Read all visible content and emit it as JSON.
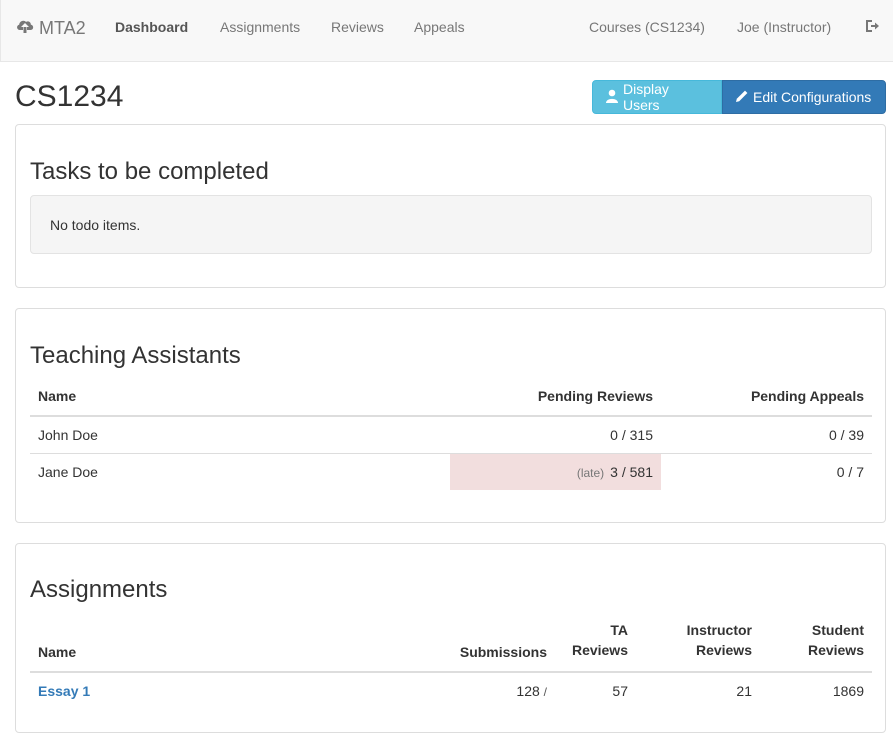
{
  "navbar": {
    "brand": "MTA2",
    "links": [
      "Dashboard",
      "Assignments",
      "Reviews",
      "Appeals"
    ],
    "courses": "Courses (CS1234)",
    "user": "Joe (Instructor)"
  },
  "header": {
    "title": "CS1234",
    "display_users": "Display Users",
    "edit_config": "Edit Configurations"
  },
  "tasks": {
    "title": "Tasks to be completed",
    "empty": "No todo items."
  },
  "tas": {
    "title": "Teaching Assistants",
    "columns": [
      "Name",
      "Pending Reviews",
      "Pending Appeals"
    ],
    "rows": [
      {
        "name": "John Doe",
        "late": "",
        "reviews": "0 / 315",
        "appeals": "0 / 39"
      },
      {
        "name": "Jane Doe",
        "late": "(late)",
        "reviews": "3 / 581",
        "appeals": "0 / 7"
      }
    ]
  },
  "assignments": {
    "title": "Assignments",
    "columns": {
      "name": "Name",
      "submissions": "Submissions",
      "ta_1": "TA",
      "ta_2": "Reviews",
      "instr_1": "Instructor",
      "instr_2": "Reviews",
      "student_1": "Student",
      "student_2": "Reviews"
    },
    "rows": [
      {
        "name": "Essay 1",
        "submissions": "128",
        "slash": "/",
        "ta": "57",
        "instructor": "21",
        "student": "1869"
      }
    ]
  },
  "colors": {
    "info": "#5bc0de",
    "primary": "#337ab7",
    "danger_bg": "#f2dede"
  }
}
